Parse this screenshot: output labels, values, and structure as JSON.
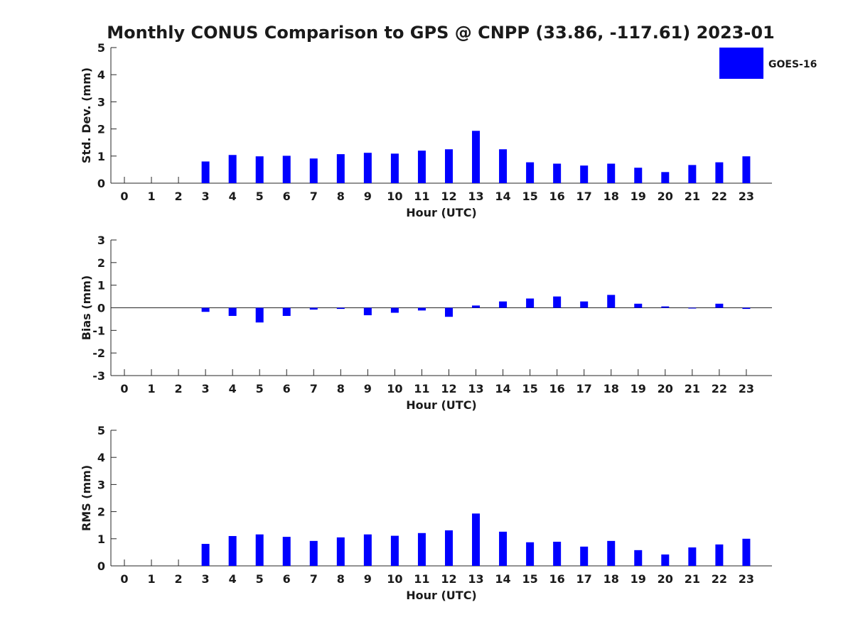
{
  "title": "Monthly CONUS Comparison to GPS @ CNPP (33.86, -117.61) 2023-01",
  "legend": {
    "label": "GOES-16",
    "color": "#0000ff",
    "placement": "top-right"
  },
  "colors": {
    "bar": "#0000ff",
    "axis": "#262626",
    "text": "#1a1a1a",
    "background": "#ffffff"
  },
  "chart_data": [
    {
      "type": "bar",
      "xlabel": "Hour (UTC)",
      "ylabel": "Std. Dev. (mm)",
      "ylim": [
        0,
        5
      ],
      "yticks": [
        0,
        1,
        2,
        3,
        4,
        5
      ],
      "grid": false,
      "categories": [
        "0",
        "1",
        "2",
        "3",
        "4",
        "5",
        "6",
        "7",
        "8",
        "9",
        "10",
        "11",
        "12",
        "13",
        "14",
        "15",
        "16",
        "17",
        "18",
        "19",
        "20",
        "21",
        "22",
        "23"
      ],
      "series": [
        {
          "name": "GOES-16",
          "values": [
            null,
            null,
            null,
            0.8,
            1.04,
            0.99,
            1.01,
            0.91,
            1.07,
            1.12,
            1.09,
            1.2,
            1.25,
            1.93,
            1.25,
            0.77,
            0.72,
            0.65,
            0.72,
            0.57,
            0.41,
            0.67,
            0.77,
            0.99
          ]
        }
      ]
    },
    {
      "type": "bar",
      "xlabel": "Hour (UTC)",
      "ylabel": "Bias (mm)",
      "ylim": [
        -3,
        3
      ],
      "yticks": [
        -3,
        -2,
        -1,
        0,
        1,
        2,
        3
      ],
      "grid": false,
      "categories": [
        "0",
        "1",
        "2",
        "3",
        "4",
        "5",
        "6",
        "7",
        "8",
        "9",
        "10",
        "11",
        "12",
        "13",
        "14",
        "15",
        "16",
        "17",
        "18",
        "19",
        "20",
        "21",
        "22",
        "23"
      ],
      "series": [
        {
          "name": "GOES-16",
          "values": [
            null,
            null,
            null,
            -0.18,
            -0.36,
            -0.65,
            -0.36,
            -0.08,
            -0.05,
            -0.33,
            -0.22,
            -0.12,
            -0.4,
            0.1,
            0.28,
            0.41,
            0.5,
            0.28,
            0.57,
            0.18,
            0.06,
            -0.02,
            0.18,
            -0.05
          ]
        }
      ]
    },
    {
      "type": "bar",
      "xlabel": "Hour (UTC)",
      "ylabel": "RMS (mm)",
      "ylim": [
        0,
        5
      ],
      "yticks": [
        0,
        1,
        2,
        3,
        4,
        5
      ],
      "grid": false,
      "categories": [
        "0",
        "1",
        "2",
        "3",
        "4",
        "5",
        "6",
        "7",
        "8",
        "9",
        "10",
        "11",
        "12",
        "13",
        "14",
        "15",
        "16",
        "17",
        "18",
        "19",
        "20",
        "21",
        "22",
        "23"
      ],
      "series": [
        {
          "name": "GOES-16",
          "values": [
            null,
            null,
            null,
            0.81,
            1.1,
            1.16,
            1.07,
            0.92,
            1.05,
            1.16,
            1.11,
            1.21,
            1.31,
            1.93,
            1.26,
            0.87,
            0.89,
            0.71,
            0.92,
            0.58,
            0.42,
            0.68,
            0.79,
            1.0
          ]
        }
      ]
    }
  ]
}
